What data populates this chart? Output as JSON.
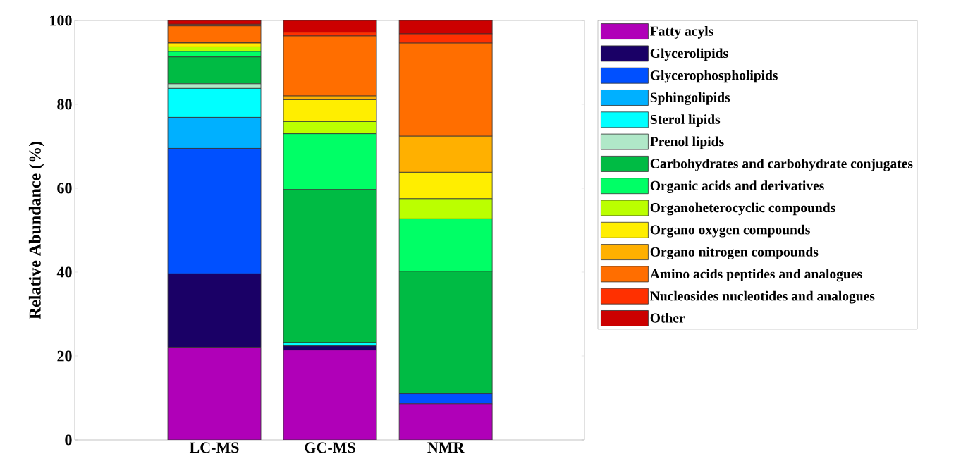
{
  "chart_data": {
    "type": "bar",
    "stacked": true,
    "ylabel": "Relative Abundance (%)",
    "categories": [
      "LC-MS",
      "GC-MS",
      "NMR"
    ],
    "ylim": [
      0,
      100
    ],
    "yticks": [
      0,
      20,
      40,
      60,
      80,
      100
    ],
    "legend": "right",
    "series": [
      {
        "name": "Fatty acyls",
        "color": "#b000b8",
        "values": [
          22.1,
          21.4,
          8.6
        ]
      },
      {
        "name": "Glycerolipids",
        "color": "#1a0066",
        "values": [
          17.5,
          1.0,
          0
        ]
      },
      {
        "name": "Glycerophospholipids",
        "color": "#0050ff",
        "values": [
          29.9,
          0,
          2.4
        ]
      },
      {
        "name": "Sphingolipids",
        "color": "#00b0ff",
        "values": [
          7.4,
          0,
          0
        ]
      },
      {
        "name": "Sterol lipids",
        "color": "#00ffff",
        "values": [
          6.9,
          0.8,
          0
        ]
      },
      {
        "name": "Prenol lipids",
        "color": "#b0e8c8",
        "values": [
          1.1,
          0,
          0
        ]
      },
      {
        "name": "Carbohydrates and carbohydrate conjugates",
        "color": "#00bb44",
        "values": [
          6.4,
          36.5,
          29.2
        ]
      },
      {
        "name": "Organic acids and derivatives",
        "color": "#00ff66",
        "values": [
          1.3,
          13.3,
          12.5
        ]
      },
      {
        "name": "Organoheterocyclic compounds",
        "color": "#bbff00",
        "values": [
          1.1,
          2.9,
          4.8
        ]
      },
      {
        "name": "Organo oxygen compounds",
        "color": "#ffee00",
        "values": [
          0.7,
          5.2,
          6.3
        ]
      },
      {
        "name": "Organo nitrogen compounds",
        "color": "#ffb000",
        "values": [
          0.3,
          0.9,
          8.6
        ]
      },
      {
        "name": "Amino acids peptides and analogues",
        "color": "#ff6e00",
        "values": [
          4.0,
          14.3,
          22.2
        ]
      },
      {
        "name": "Nucleosides nucleotides and analogues",
        "color": "#ff3000",
        "values": [
          0.4,
          0.9,
          2.2
        ]
      },
      {
        "name": "Other",
        "color": "#cc0000",
        "values": [
          0.9,
          2.8,
          3.2
        ]
      }
    ]
  }
}
